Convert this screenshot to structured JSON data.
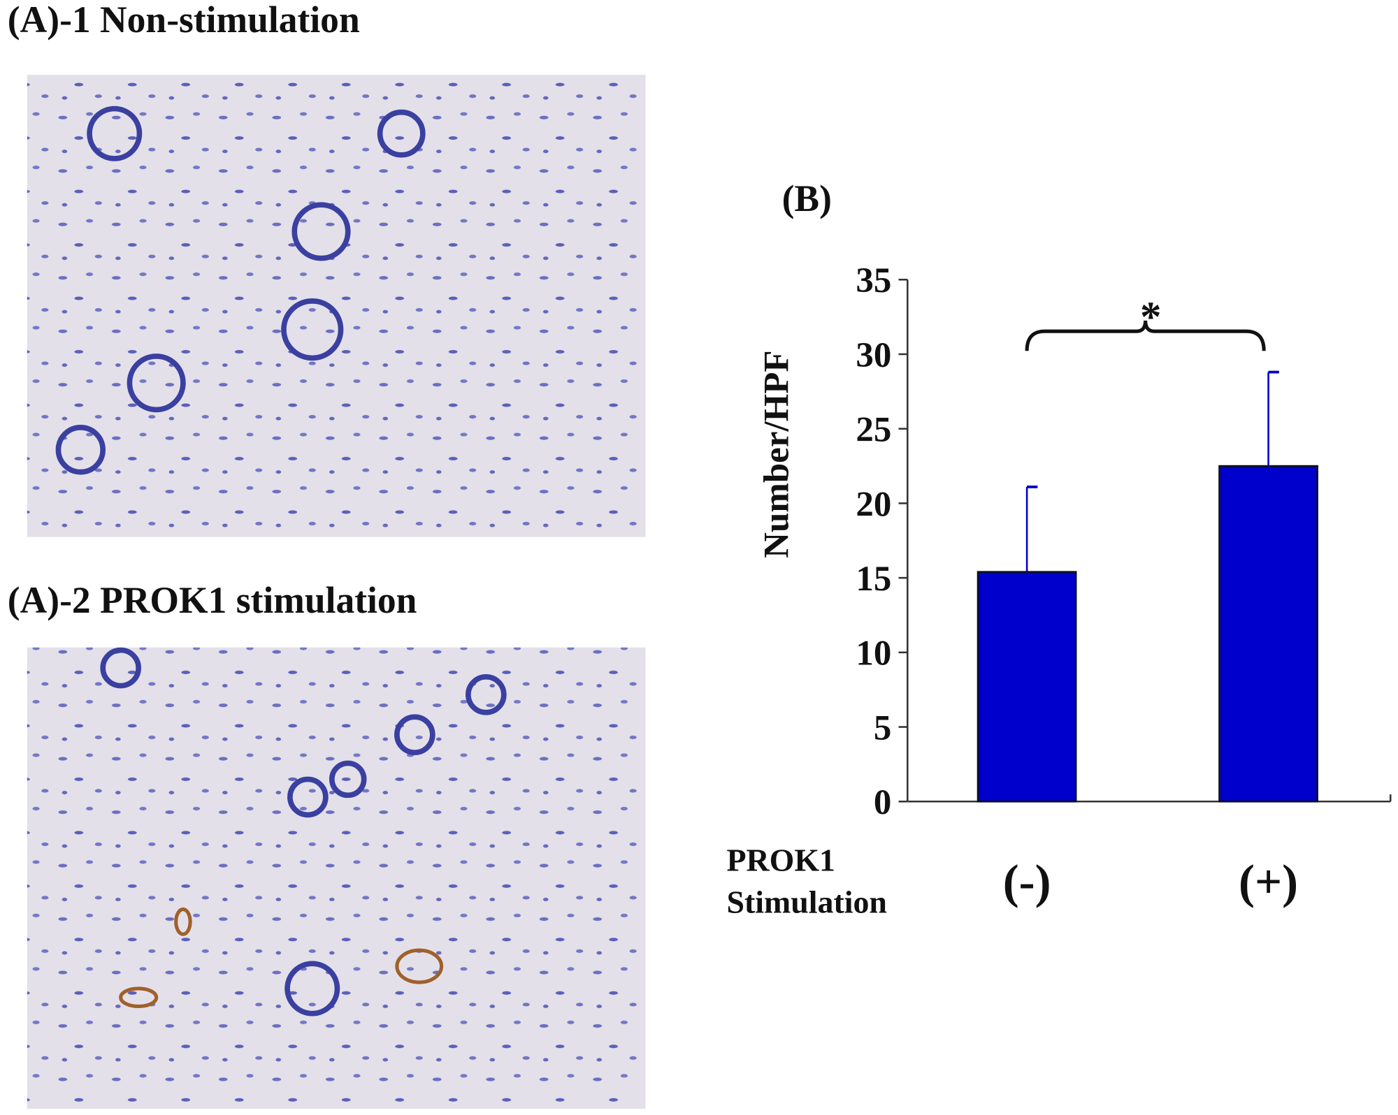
{
  "panels": [
    {
      "label": "(A)-1 Non-stimulation"
    },
    {
      "label": "(A)-2 PROK1 stimulation"
    }
  ],
  "chart_data": {
    "type": "bar",
    "title": "(B)",
    "y_label": "Number/HPF",
    "x_label": [
      "PROK1",
      "Stimulation"
    ],
    "categories": [
      "(-)",
      "(+)"
    ],
    "series": [
      {
        "name": null,
        "color": "#0000cc",
        "values": [
          15.4,
          22.5
        ],
        "errors": [
          5.7,
          6.3
        ]
      }
    ],
    "ylim": [
      0,
      35
    ],
    "yticks": [
      0,
      5,
      10,
      15,
      20,
      25,
      30,
      35
    ],
    "annotation": "*"
  }
}
